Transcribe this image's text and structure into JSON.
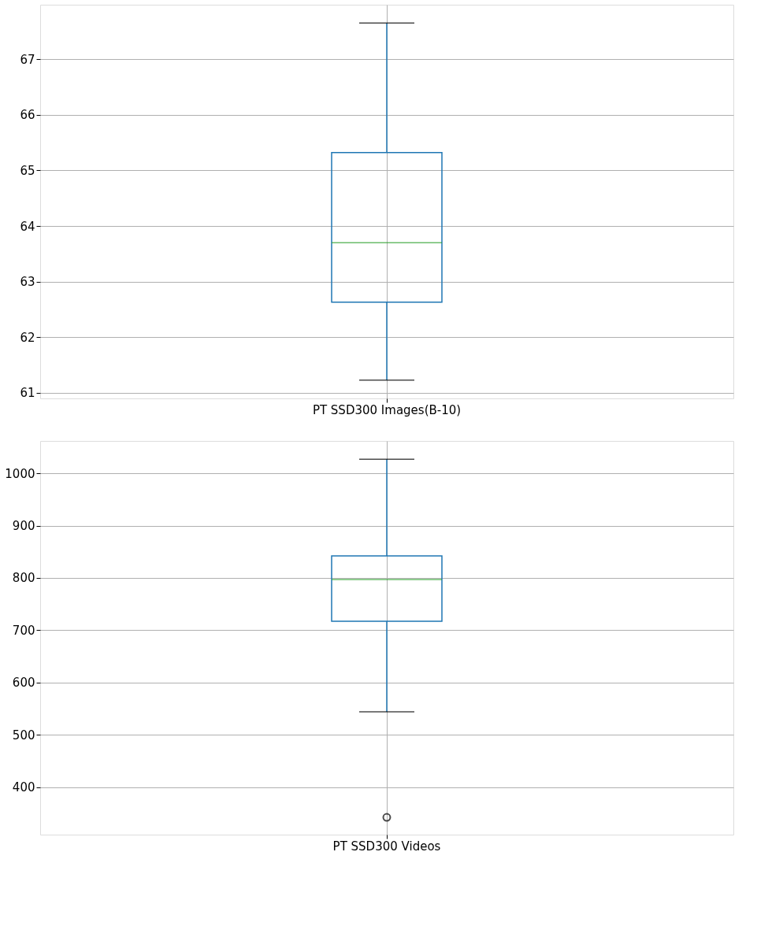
{
  "chart_data": [
    {
      "type": "box",
      "categories": [
        "PT SSD300 Images(B-10)"
      ],
      "series": [
        {
          "color": "#1f77b4",
          "colors": [
            "#2ca02c"
          ],
          "boxes": [
            {
              "low": 61.23,
              "q1": 62.63,
              "median": 63.7,
              "q3": 65.32,
              "high": 67.65
            }
          ]
        }
      ],
      "ylim": [
        60.9,
        67.98
      ],
      "yticks": [
        61,
        62,
        63,
        64,
        65,
        66,
        67
      ],
      "grid": true
    },
    {
      "type": "box",
      "categories": [
        "PT SSD300 Videos"
      ],
      "series": [
        {
          "color": "#1f77b4",
          "colors": [
            "#2ca02c"
          ],
          "boxes": [
            {
              "low": 544,
              "q1": 717,
              "median": 797,
              "q3": 842,
              "high": 1027,
              "outliers": [
                342
              ]
            }
          ]
        }
      ],
      "ylim": [
        309,
        1062
      ],
      "yticks": [
        400,
        500,
        600,
        700,
        800,
        900,
        1000
      ],
      "grid": true
    }
  ]
}
